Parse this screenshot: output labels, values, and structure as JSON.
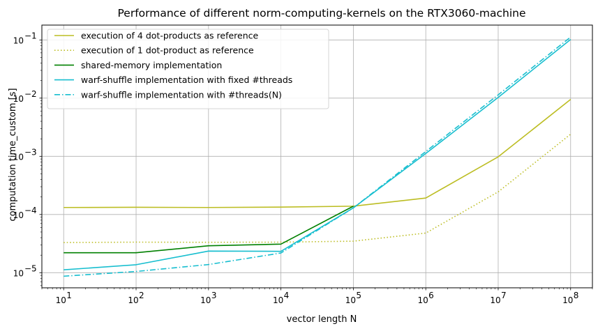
{
  "chart_data": {
    "type": "line",
    "title": "Performance of different norm-computing-kernels on the RTX3060-machine",
    "xlabel": "vector length N",
    "ylabel": "computation time_custom [s]",
    "x_scale": "log",
    "y_scale": "log",
    "xlim": [
      5,
      200000000
    ],
    "ylim": [
      5.5e-06,
      0.18
    ],
    "grid": true,
    "legend_position": "top-left",
    "x_ticks": [
      {
        "value": 10,
        "base": "10",
        "exp": "1"
      },
      {
        "value": 100,
        "base": "10",
        "exp": "2"
      },
      {
        "value": 1000,
        "base": "10",
        "exp": "3"
      },
      {
        "value": 10000,
        "base": "10",
        "exp": "4"
      },
      {
        "value": 100000,
        "base": "10",
        "exp": "5"
      },
      {
        "value": 1000000,
        "base": "10",
        "exp": "6"
      },
      {
        "value": 10000000,
        "base": "10",
        "exp": "7"
      },
      {
        "value": 100000000,
        "base": "10",
        "exp": "8"
      }
    ],
    "y_ticks": [
      {
        "value": 1e-05,
        "base": "10",
        "exp": "−5"
      },
      {
        "value": 0.0001,
        "base": "10",
        "exp": "−4"
      },
      {
        "value": 0.001,
        "base": "10",
        "exp": "−3"
      },
      {
        "value": 0.01,
        "base": "10",
        "exp": "−2"
      },
      {
        "value": 0.1,
        "base": "10",
        "exp": "−1"
      }
    ],
    "x": [
      10,
      100,
      1000,
      10000,
      100000,
      1000000,
      10000000,
      100000000
    ],
    "series": [
      {
        "name": "execution of 4 dot-products as reference",
        "color": "#bcbd22",
        "style": "solid",
        "values": [
          0.000132,
          0.000133,
          0.000132,
          0.000134,
          0.000139,
          0.000192,
          0.00098,
          0.0095
        ]
      },
      {
        "name": "execution of 1 dot-product as reference",
        "color": "#bcbd22",
        "style": "dotted",
        "values": [
          3.3e-05,
          3.35e-05,
          3.33e-05,
          3.35e-05,
          3.48e-05,
          4.8e-05,
          0.000245,
          0.0024
        ]
      },
      {
        "name": "shared-memory implementation",
        "color": "#008000",
        "style": "solid",
        "values": [
          2.2e-05,
          2.2e-05,
          2.9e-05,
          3.1e-05,
          0.000139,
          null,
          null,
          null
        ]
      },
      {
        "name": "warf-shuffle implementation with fixed #threads",
        "color": "#17becf",
        "style": "solid",
        "values": [
          1.12e-05,
          1.37e-05,
          2.35e-05,
          2.33e-05,
          0.00013,
          0.00112,
          0.0103,
          0.102
        ]
      },
      {
        "name": "warf-shuffle implementation with #threads(N)",
        "color": "#17becf",
        "style": "dashdot",
        "values": [
          8.7e-06,
          1.05e-05,
          1.38e-05,
          2.18e-05,
          0.00013,
          0.00121,
          0.0114,
          0.112
        ]
      }
    ]
  }
}
